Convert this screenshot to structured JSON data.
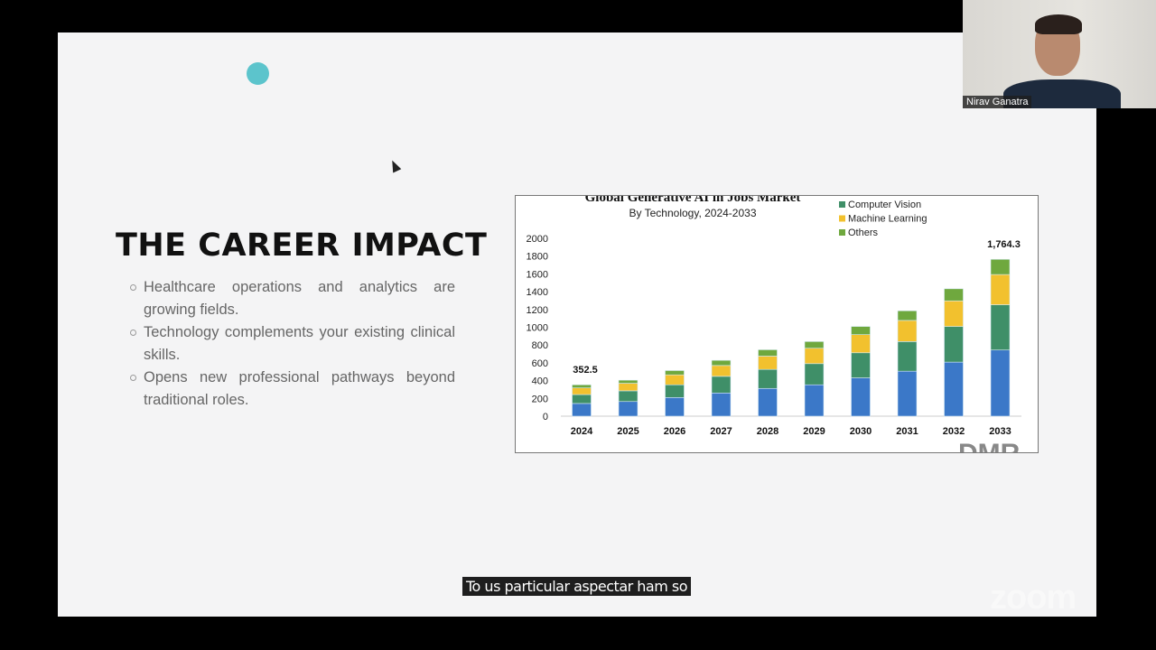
{
  "slide": {
    "title": "THE CAREER IMPACT",
    "bullets": [
      "Healthcare operations and analytics are growing fields.",
      "Technology complements your existing clinical skills.",
      "Opens new professional pathways beyond traditional roles."
    ],
    "accent_color": "#5cc4cc"
  },
  "video": {
    "participant_name": "Nirav Ganatra",
    "caption": "To us particular aspectar ham so",
    "watermark": "zoom"
  },
  "chart_data": {
    "type": "bar",
    "stacked": true,
    "title": "Global Generative AI in Jobs Market",
    "subtitle": "By Technology, 2024-2033",
    "xlabel": "",
    "ylabel": "",
    "ylim": [
      0,
      2000
    ],
    "yticks": [
      0,
      200,
      400,
      600,
      800,
      1000,
      1200,
      1400,
      1600,
      1800,
      2000
    ],
    "categories": [
      "2024",
      "2025",
      "2026",
      "2027",
      "2028",
      "2029",
      "2030",
      "2031",
      "2032",
      "2033"
    ],
    "legend_position": "top-right",
    "series": [
      {
        "color": "#3b78c8",
        "values": [
          143,
          165,
          210,
          261,
          312,
          353,
          431,
          506,
          608,
          744
        ]
      },
      {
        "name": "Computer Vision",
        "color": "#3f8f68",
        "values": [
          100,
          120,
          143,
          187,
          214,
          238,
          282,
          333,
          401,
          509
        ]
      },
      {
        "name": "Machine Learning",
        "color": "#f2c12e",
        "values": [
          75,
          85,
          112,
          122,
          150,
          173,
          204,
          238,
          288,
          340
        ]
      },
      {
        "name": "Others",
        "color": "#6fa83e",
        "values": [
          35,
          35,
          48,
          58,
          71,
          75,
          92,
          108,
          136,
          171
        ]
      }
    ],
    "annotations": [
      {
        "category": "2024",
        "text": "352.5"
      },
      {
        "category": "2033",
        "text": "1,764.3"
      }
    ],
    "watermark": "DMR"
  }
}
